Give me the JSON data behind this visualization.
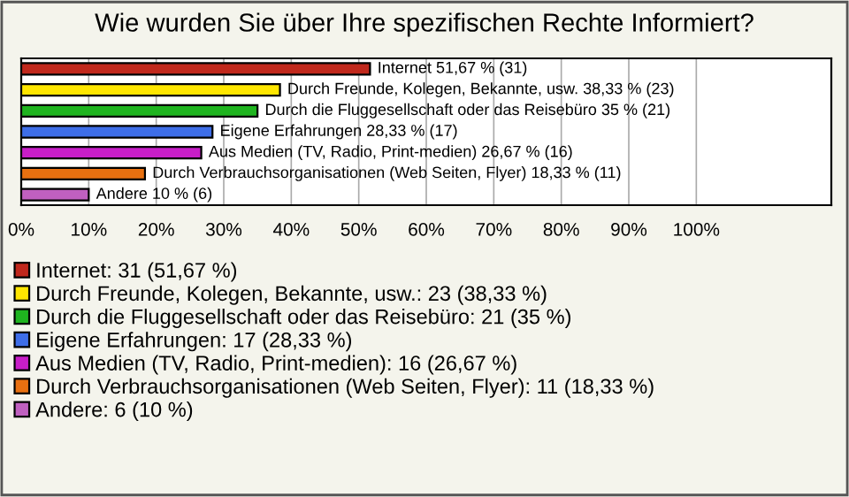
{
  "chart_data": {
    "type": "bar",
    "orientation": "horizontal",
    "title": "Wie wurden Sie über Ihre spezifischen Rechte Informiert?",
    "categories": [
      null,
      null,
      null,
      null,
      null,
      null,
      null
    ],
    "series": [
      {
        "name": "Internet: 31 (51,67 %)",
        "color": "#c0281c",
        "values": [
          51.67,
          null,
          null,
          null,
          null,
          null,
          null
        ],
        "value_labels": [
          "Internet 51,67 % (31)",
          null,
          null,
          null,
          null,
          null,
          null
        ]
      },
      {
        "name": "Durch Freunde, Kolegen, Bekannte, usw.: 23 (38,33 %)",
        "color": "#ffe600",
        "values": [
          null,
          38.33,
          null,
          null,
          null,
          null,
          null
        ],
        "value_labels": [
          null,
          "Durch Freunde, Kolegen, Bekannte, usw. 38,33 % (23)",
          null,
          null,
          null,
          null,
          null
        ]
      },
      {
        "name": "Durch die Fluggesellschaft oder das Reisebüro: 21 (35 %)",
        "color": "#1fb41f",
        "values": [
          null,
          null,
          35,
          null,
          null,
          null,
          null
        ],
        "value_labels": [
          null,
          null,
          "Durch die Fluggesellschaft oder das Reisebüro 35 % (21)",
          null,
          null,
          null,
          null
        ]
      },
      {
        "name": "Eigene Erfahrungen: 17 (28,33 %)",
        "color": "#3e6ee8",
        "values": [
          null,
          null,
          null,
          28.33,
          null,
          null,
          null
        ],
        "value_labels": [
          null,
          null,
          null,
          "Eigene Erfahrungen 28,33 % (17)",
          null,
          null,
          null
        ]
      },
      {
        "name": "Aus Medien (TV, Radio, Print-medien): 16 (26,67 %)",
        "color": "#c81ec8",
        "values": [
          null,
          null,
          null,
          null,
          26.67,
          null,
          null
        ],
        "value_labels": [
          null,
          null,
          null,
          null,
          "Aus Medien (TV, Radio, Print-medien) 26,67 % (16)",
          null,
          null
        ]
      },
      {
        "name": "Durch Verbrauchsorganisationen (Web Seiten, Flyer): 11 (18,33 %)",
        "color": "#e87010",
        "values": [
          null,
          null,
          null,
          null,
          null,
          18.33,
          null
        ],
        "value_labels": [
          null,
          null,
          null,
          null,
          null,
          "Durch Verbrauchsorganisationen (Web Seiten, Flyer) 18,33 % (11)",
          null
        ]
      },
      {
        "name": "Andere: 6 (10 %)",
        "color": "#c060c0",
        "values": [
          null,
          null,
          null,
          null,
          null,
          null,
          10
        ],
        "value_labels": [
          null,
          null,
          null,
          null,
          null,
          null,
          "Andere 10 % (6)"
        ]
      }
    ],
    "xlim": [
      0,
      120
    ],
    "xticks": [
      {
        "value": 0,
        "label": "0%"
      },
      {
        "value": 10,
        "label": "10%"
      },
      {
        "value": 20,
        "label": "20%"
      },
      {
        "value": 30,
        "label": "30%"
      },
      {
        "value": 40,
        "label": "40%"
      },
      {
        "value": 50,
        "label": "50%"
      },
      {
        "value": 60,
        "label": "60%"
      },
      {
        "value": 70,
        "label": "70%"
      },
      {
        "value": 80,
        "label": "80%"
      },
      {
        "value": 90,
        "label": "90%"
      },
      {
        "value": 100,
        "label": "100%"
      }
    ],
    "grid": "x",
    "legend": "bottom"
  }
}
